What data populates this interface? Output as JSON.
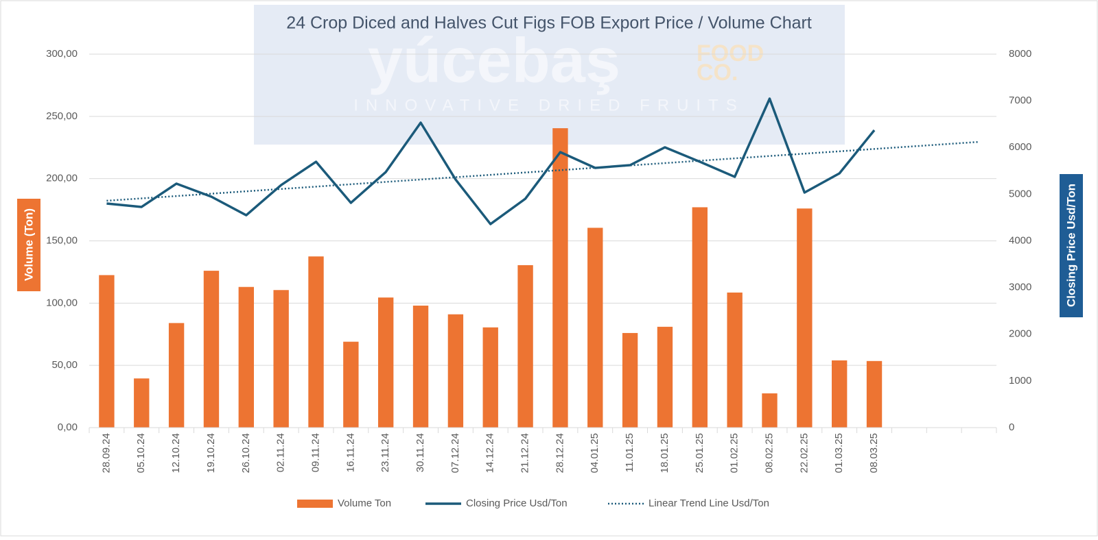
{
  "chart_data": {
    "type": "bar-line",
    "title": "24 Crop Diced and Halves Cut Figs FOB Export Price / Volume Chart",
    "watermark": {
      "brand": "yúcebaş",
      "brand_suffix_1": "FOOD",
      "brand_suffix_2": "CO.",
      "tagline": "INNOVATIVE DRIED FRUITS"
    },
    "y_label": "Volume (Ton)",
    "y2_label": "Closing Price Usd/Ton",
    "categories": [
      "28.09.24",
      "05.10.24",
      "12.10.24",
      "19.10.24",
      "26.10.24",
      "02.11.24",
      "09.11.24",
      "16.11.24",
      "23.11.24",
      "30.11.24",
      "07.12.24",
      "14.12.24",
      "21.12.24",
      "28.12.24",
      "04.01.25",
      "11.01.25",
      "18.01.25",
      "25.01.25",
      "01.02.25",
      "08.02.25",
      "22.02.25",
      "01.03.25",
      "08.03.25",
      null,
      null,
      null
    ],
    "series": [
      {
        "name": "Volume Ton",
        "kind": "bar",
        "color": "#ed7432",
        "axis": "y",
        "values": [
          122.5,
          39.5,
          84,
          126,
          113,
          110.5,
          137.5,
          69,
          104.5,
          98,
          91,
          80.5,
          130.5,
          240.5,
          160.5,
          76,
          81,
          177,
          108.5,
          27.5,
          176,
          54,
          53.5,
          null,
          null,
          null
        ]
      },
      {
        "name": "Closing Price Usd/Ton",
        "kind": "line",
        "color": "#1b5a7a",
        "axis": "y2",
        "values": [
          4800,
          4727,
          5226,
          4947,
          4550,
          5196,
          5695,
          4815,
          5475,
          6532,
          5314,
          4360,
          4903,
          5901,
          5563,
          5622,
          6004,
          5695,
          5372,
          7046,
          5035,
          5446,
          6371,
          null,
          null,
          null
        ]
      },
      {
        "name": "Linear Trend Line Usd/Ton",
        "kind": "dotted",
        "color": "#1b5a7a",
        "axis": "y2",
        "values": [
          4860,
          4910,
          4960,
          5011,
          5062,
          5112,
          5162,
          5213,
          5263,
          5314,
          5364,
          5414,
          5465,
          5515,
          5566,
          5616,
          5666,
          5717,
          5767,
          5818,
          5868,
          5918,
          5969,
          6019,
          6070,
          6120
        ]
      }
    ],
    "ylim": [
      0,
      300
    ],
    "yticks": [
      {
        "value": 0,
        "label": "0,00"
      },
      {
        "value": 50,
        "label": "50,00"
      },
      {
        "value": 100,
        "label": "100,00"
      },
      {
        "value": 150,
        "label": "150,00"
      },
      {
        "value": 200,
        "label": "200,00"
      },
      {
        "value": 250,
        "label": "250,00"
      },
      {
        "value": 300,
        "label": "300,00"
      }
    ],
    "y2lim": [
      0,
      8000
    ],
    "y2ticks": [
      0,
      1000,
      2000,
      3000,
      4000,
      5000,
      6000,
      7000,
      8000
    ],
    "grid": true,
    "legend": "bottom"
  }
}
